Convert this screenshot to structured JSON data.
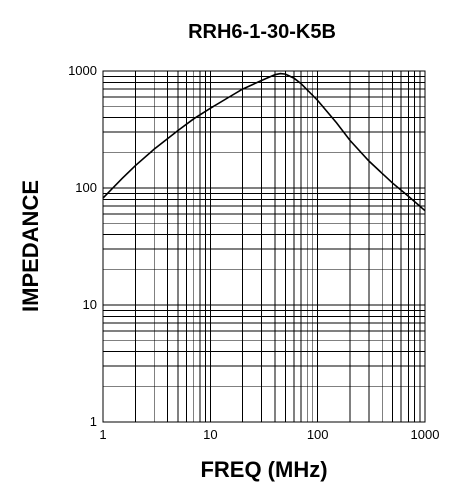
{
  "chart_data": {
    "type": "line",
    "title": "RRH6-1-30-K5B",
    "xlabel": "FREQ (MHz)",
    "ylabel": "IMPEDANCE",
    "x_scale": "log",
    "y_scale": "log",
    "xlim": [
      1,
      1000
    ],
    "ylim": [
      1,
      1000
    ],
    "x_ticks": [
      "1",
      "10",
      "100",
      "1000"
    ],
    "y_ticks": [
      "1",
      "10",
      "100",
      "1000"
    ],
    "grid": true,
    "series": [
      {
        "x": [
          1,
          1.5,
          2,
          3,
          5,
          7,
          10,
          15,
          20,
          30,
          40,
          45,
          50,
          60,
          70,
          100,
          150,
          200,
          300,
          500,
          700,
          1000
        ],
        "y": [
          82,
          120,
          155,
          215,
          310,
          390,
          480,
          600,
          700,
          830,
          930,
          950,
          940,
          870,
          780,
          560,
          360,
          255,
          170,
          110,
          85,
          64
        ]
      }
    ]
  }
}
